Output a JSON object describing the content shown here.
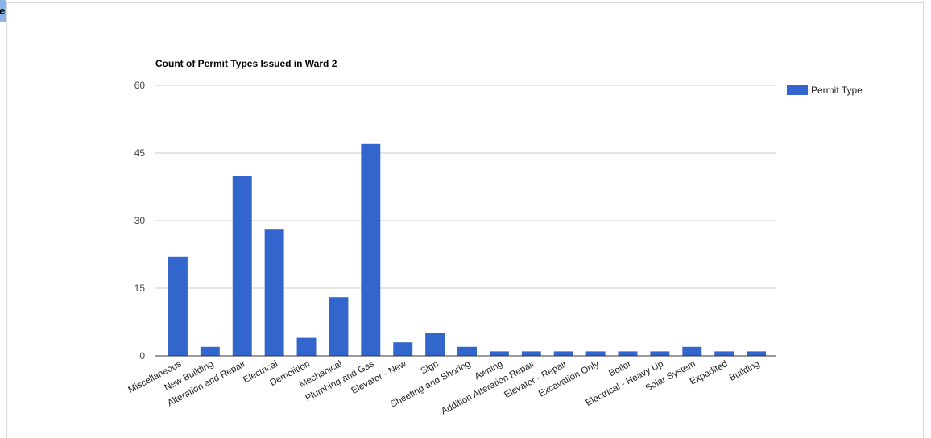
{
  "corner_tab": {
    "label": "er"
  },
  "chart_data": {
    "type": "bar",
    "title": "Count of Permit Types Issued in Ward 2",
    "xlabel": "",
    "ylabel": "",
    "ylim": [
      0,
      60
    ],
    "yticks": [
      0,
      15,
      30,
      45,
      60
    ],
    "grid": true,
    "legend_position": "right",
    "categories": [
      "Miscellaneous",
      "New Building",
      "Alteration and Repair",
      "Electrical",
      "Demolition",
      "Mechanical",
      "Plumbing and Gas",
      "Elevator - New",
      "Sign",
      "Sheeting and Shoring",
      "Awning",
      "Addition Alteration Repair",
      "Elevator - Repair",
      "Excavation Only",
      "Boiler",
      "Electrical - Heavy Up",
      "Solar System",
      "Expedited",
      "Building"
    ],
    "series": [
      {
        "name": "Permit Type",
        "color": "#3366cc",
        "values": [
          22,
          2,
          40,
          28,
          4,
          13,
          47,
          3,
          5,
          2,
          1,
          1,
          1,
          1,
          1,
          1,
          2,
          1,
          1
        ]
      }
    ]
  }
}
